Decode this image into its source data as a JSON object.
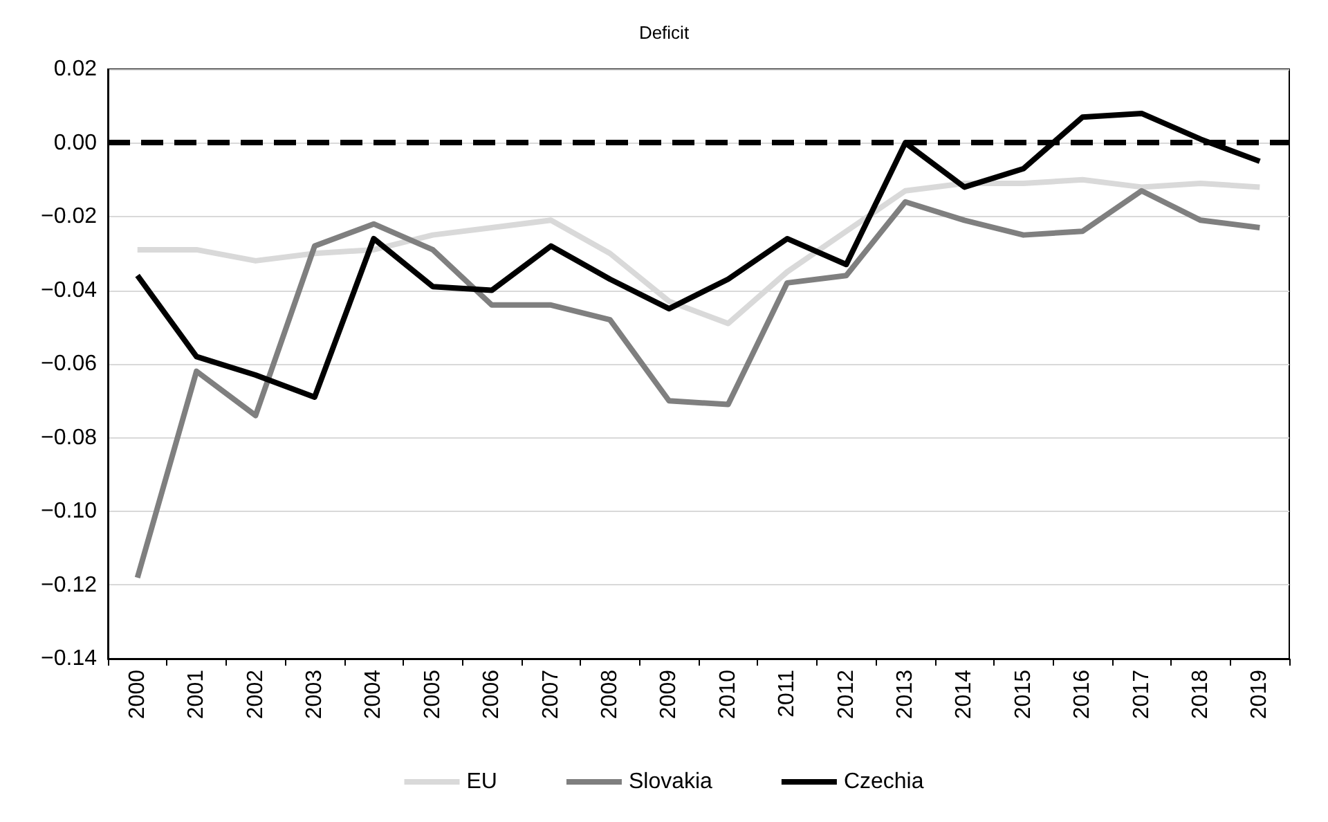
{
  "chart_data": {
    "type": "line",
    "title": "Deficit",
    "categories": [
      "2000",
      "2001",
      "2002",
      "2003",
      "2004",
      "2005",
      "2006",
      "2007",
      "2008",
      "2009",
      "2010",
      "2011",
      "2012",
      "2013",
      "2014",
      "2015",
      "2016",
      "2017",
      "2018",
      "2019"
    ],
    "series": [
      {
        "name": "EU",
        "color": "#d9d9d9",
        "values": [
          -0.029,
          -0.029,
          -0.032,
          -0.03,
          -0.029,
          -0.025,
          -0.023,
          -0.021,
          -0.03,
          -0.043,
          -0.049,
          -0.035,
          -0.024,
          -0.013,
          -0.011,
          -0.011,
          -0.01,
          -0.012,
          -0.011,
          -0.012
        ]
      },
      {
        "name": "Slovakia",
        "color": "#7f7f7f",
        "values": [
          -0.118,
          -0.062,
          -0.074,
          -0.028,
          -0.022,
          -0.029,
          -0.044,
          -0.044,
          -0.048,
          -0.07,
          -0.071,
          -0.038,
          -0.036,
          -0.016,
          -0.021,
          -0.025,
          -0.024,
          -0.013,
          -0.021,
          -0.023
        ]
      },
      {
        "name": "Czechia",
        "color": "#000000",
        "values": [
          -0.036,
          -0.058,
          -0.063,
          -0.069,
          -0.026,
          -0.039,
          -0.04,
          -0.028,
          -0.037,
          -0.045,
          -0.037,
          -0.026,
          -0.033,
          0.0,
          -0.012,
          -0.007,
          0.007,
          0.008,
          0.001,
          -0.005
        ]
      }
    ],
    "ylim": [
      -0.14,
      0.02
    ],
    "yticks": [
      {
        "value": -0.14,
        "label": "−0.14"
      },
      {
        "value": -0.12,
        "label": "−0.12"
      },
      {
        "value": -0.1,
        "label": "−0.10"
      },
      {
        "value": -0.08,
        "label": "−0.08"
      },
      {
        "value": -0.06,
        "label": "−0.06"
      },
      {
        "value": -0.04,
        "label": "−0.04"
      },
      {
        "value": -0.02,
        "label": "−0.02"
      },
      {
        "value": 0,
        "label": "0.00"
      },
      {
        "value": 0.02,
        "label": "0.02"
      }
    ],
    "ref_lines": [
      {
        "axis": "y",
        "value": 0,
        "color": "#000000",
        "line_style": "dashed"
      }
    ],
    "grid": "y",
    "legend": "bottom",
    "marker": "none",
    "line_style": "solid"
  }
}
